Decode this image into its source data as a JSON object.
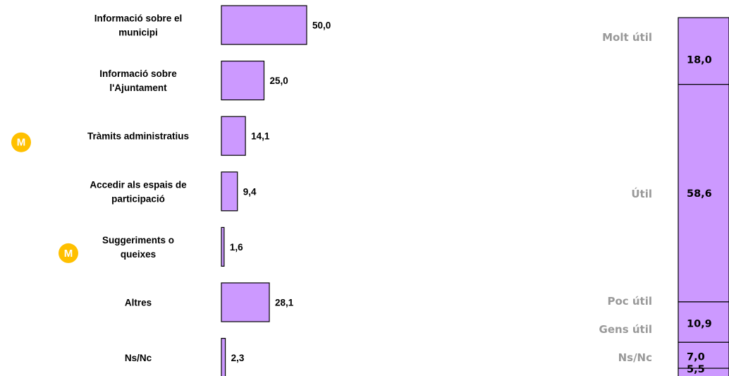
{
  "colors": {
    "bar_fill": "#CC99FF",
    "bar_stroke": "#000000",
    "badge": "#FFC000",
    "segment_label": "#999999"
  },
  "chart_data": [
    {
      "type": "bar",
      "orientation": "horizontal",
      "categories": [
        [
          "Informació sobre el",
          "municipi"
        ],
        [
          "Informació sobre",
          "l'Ajuntament"
        ],
        [
          "Tràmits administratius"
        ],
        [
          "Accedir als espais de",
          "participació"
        ],
        [
          "Suggeriments o",
          "queixes"
        ],
        [
          "Altres"
        ],
        [
          "Ns/Nc"
        ]
      ],
      "values": [
        50.0,
        25.0,
        14.1,
        9.4,
        1.6,
        28.1,
        2.3
      ],
      "value_labels": [
        "50,0",
        "25,0",
        "14,1",
        "9,4",
        "1,6",
        "28,1",
        "2,3"
      ],
      "badges": [
        "",
        "",
        "M",
        "",
        "M",
        "",
        ""
      ],
      "xlim": [
        0,
        50
      ]
    },
    {
      "type": "bar",
      "orientation": "stacked-vertical",
      "categories": [
        "Molt útil",
        "Útil",
        "Poc útil",
        "Gens útil",
        "Ns/Nc"
      ],
      "values": [
        18.0,
        58.6,
        10.9,
        7.0,
        5.5
      ],
      "value_labels": [
        "18,0",
        "58,6",
        "10,9",
        "7,0",
        "5,5"
      ],
      "ylim": [
        0,
        100
      ]
    }
  ]
}
